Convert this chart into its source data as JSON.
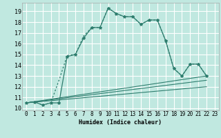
{
  "xlabel": "Humidex (Indice chaleur)",
  "background_color": "#c0e8e0",
  "grid_color": "#ffffff",
  "line_color": "#2e7d6e",
  "xlim": [
    -0.5,
    23.5
  ],
  "ylim": [
    9.8,
    19.8
  ],
  "yticks": [
    10,
    11,
    12,
    13,
    14,
    15,
    16,
    17,
    18,
    19
  ],
  "xticks": [
    0,
    1,
    2,
    3,
    4,
    5,
    6,
    7,
    8,
    9,
    10,
    11,
    12,
    13,
    14,
    15,
    16,
    17,
    18,
    19,
    20,
    21,
    22,
    23
  ],
  "curve1_x": [
    0,
    1,
    2,
    3,
    4,
    5,
    6,
    7,
    8,
    9,
    10,
    11,
    12,
    13,
    14,
    15,
    16,
    17,
    18,
    19,
    20,
    21,
    22
  ],
  "curve1_y": [
    10.5,
    10.6,
    10.3,
    10.5,
    12.6,
    14.9,
    15.0,
    16.7,
    17.5,
    17.5,
    19.3,
    18.8,
    18.5,
    18.5,
    17.8,
    18.2,
    18.2,
    16.3,
    13.7,
    13.0,
    14.1,
    14.1,
    13.0
  ],
  "curve2_x": [
    0,
    1,
    2,
    3,
    4,
    5,
    6,
    7,
    8,
    9,
    10,
    11,
    12,
    13,
    14,
    15,
    16,
    17,
    18,
    19,
    20,
    21,
    22
  ],
  "curve2_y": [
    10.5,
    10.6,
    10.3,
    10.5,
    10.5,
    14.8,
    15.0,
    16.5,
    17.5,
    17.5,
    19.3,
    18.8,
    18.5,
    18.5,
    17.8,
    18.2,
    18.2,
    16.3,
    13.7,
    13.0,
    14.1,
    14.1,
    13.0
  ],
  "ref_lines": [
    {
      "x": [
        0,
        22
      ],
      "y": [
        10.5,
        13.0
      ]
    },
    {
      "x": [
        0,
        22
      ],
      "y": [
        10.5,
        12.6
      ]
    },
    {
      "x": [
        0,
        22
      ],
      "y": [
        10.5,
        12.0
      ]
    }
  ]
}
